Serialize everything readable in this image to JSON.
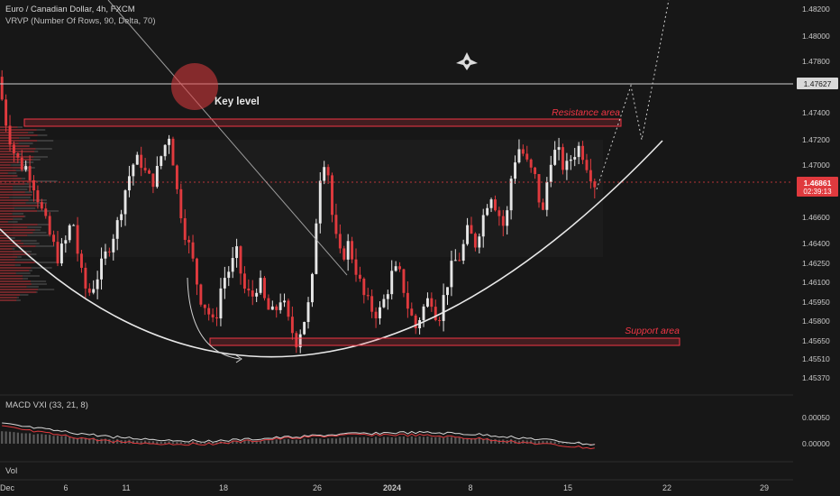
{
  "header": {
    "symbol_line": "Euro / Canadian Dollar, 4h, FXCM",
    "indicator_line": "VRVP (Number Of Rows, 90, Delta, 70)"
  },
  "price_axis": {
    "ticks": [
      "1.48200",
      "1.48000",
      "1.47800",
      "1.47400",
      "1.47200",
      "1.47000",
      "1.46600",
      "1.46400",
      "1.46250",
      "1.46100",
      "1.45950",
      "1.45800",
      "1.45650",
      "1.45510",
      "1.45370"
    ],
    "key_level_value": "1.47627",
    "last_price": "1.46861",
    "countdown": "02:39:13"
  },
  "time_axis": {
    "ticks": [
      "Dec",
      "6",
      "11",
      "18",
      "26",
      "2024",
      "8",
      "15",
      "22",
      "29"
    ]
  },
  "annotations": {
    "key_level": "Key level",
    "resistance": "Resistance area",
    "support": "Support area"
  },
  "macd": {
    "label": "MACD  VXI (33, 21, 8)",
    "ticks": [
      "0.00050",
      "0.00000"
    ]
  },
  "volume": {
    "label": "Vol"
  },
  "colors": {
    "bull": "#e6e6e6",
    "bear": "#e03a3e",
    "annotation": "#f23645",
    "curve": "#e8e8e8"
  },
  "chart_data": {
    "type": "candlestick",
    "instrument": "Euro / Canadian Dollar",
    "timeframe": "4h",
    "y_ticks": [
      1.482,
      1.48,
      1.478,
      1.474,
      1.472,
      1.47,
      1.466,
      1.464,
      1.4625,
      1.461,
      1.4595,
      1.458,
      1.4565,
      1.4551,
      1.4537
    ],
    "key_level": 1.47627,
    "last_price": 1.46861,
    "resistance_zone": [
      1.4728,
      1.4734
    ],
    "support_zone": [
      1.4561,
      1.4567
    ],
    "path_anchors": [
      1.4768,
      1.4735,
      1.4712,
      1.47,
      1.4698,
      1.4682,
      1.4662,
      1.4645,
      1.463,
      1.464,
      1.466,
      1.462,
      1.46,
      1.461,
      1.4625,
      1.464,
      1.4655,
      1.468,
      1.47,
      1.4705,
      1.469,
      1.4688,
      1.471,
      1.4725,
      1.468,
      1.465,
      1.463,
      1.46,
      1.459,
      1.4575,
      1.461,
      1.462,
      1.4632,
      1.4605,
      1.4598,
      1.4612,
      1.459,
      1.4585,
      1.46,
      1.4578,
      1.4565,
      1.458,
      1.46,
      1.4688,
      1.471,
      1.465,
      1.4628,
      1.464,
      1.462,
      1.46,
      1.459,
      1.4585,
      1.46,
      1.462,
      1.4615,
      1.459,
      1.4575,
      1.459,
      1.46,
      1.458,
      1.4605,
      1.4625,
      1.463,
      1.465,
      1.464,
      1.466,
      1.468,
      1.4665,
      1.465,
      1.47,
      1.4715,
      1.47,
      1.469,
      1.466,
      1.4705,
      1.4712,
      1.4695,
      1.4708,
      1.4715,
      1.47,
      1.4686
    ]
  }
}
